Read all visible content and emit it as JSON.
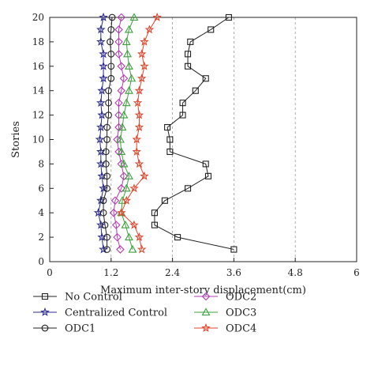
{
  "chart_data": {
    "type": "line",
    "title": "",
    "xlabel": "Maximum inter-story displacement(cm)",
    "ylabel": "Stories",
    "xlim": [
      0,
      6
    ],
    "ylim": [
      0,
      20
    ],
    "x_ticks": [
      "0",
      "1.2",
      "2.4",
      "3.6",
      "4.8",
      "6"
    ],
    "y_ticks": [
      "0",
      "2",
      "4",
      "6",
      "8",
      "10",
      "12",
      "14",
      "16",
      "18",
      "20"
    ],
    "grid": "vertical dashed at x ticks",
    "legend_position": "below plot, two columns",
    "stories": [
      1,
      2,
      3,
      4,
      5,
      6,
      7,
      8,
      9,
      10,
      11,
      12,
      13,
      14,
      15,
      16,
      17,
      18,
      19,
      20
    ],
    "series": [
      {
        "name": "No Control",
        "color": "#222222",
        "marker": "square",
        "x": [
          3.6,
          2.5,
          2.05,
          2.05,
          2.25,
          2.7,
          3.1,
          3.05,
          2.35,
          2.35,
          2.3,
          2.6,
          2.6,
          2.85,
          3.05,
          2.7,
          2.7,
          2.75,
          3.15,
          3.5
        ]
      },
      {
        "name": "Centralized Control",
        "color": "#2b2b8f",
        "marker": "star",
        "x": [
          1.05,
          1.02,
          1.0,
          0.95,
          1.0,
          1.05,
          1.02,
          1.0,
          1.0,
          0.98,
          1.0,
          1.02,
          1.0,
          1.02,
          1.05,
          1.05,
          1.05,
          1.0,
          1.0,
          1.05
        ]
      },
      {
        "name": "ODC1",
        "color": "#222222",
        "marker": "circle",
        "x": [
          1.12,
          1.12,
          1.08,
          1.05,
          1.05,
          1.12,
          1.12,
          1.1,
          1.1,
          1.12,
          1.12,
          1.15,
          1.15,
          1.15,
          1.2,
          1.2,
          1.2,
          1.18,
          1.2,
          1.22
        ]
      },
      {
        "name": "ODC2",
        "color": "#b43cb4",
        "marker": "diamond",
        "x": [
          1.38,
          1.32,
          1.3,
          1.25,
          1.28,
          1.4,
          1.45,
          1.4,
          1.35,
          1.32,
          1.35,
          1.35,
          1.35,
          1.4,
          1.45,
          1.4,
          1.35,
          1.35,
          1.35,
          1.4
        ]
      },
      {
        "name": "ODC3",
        "color": "#3ca03c",
        "marker": "triangle",
        "x": [
          1.62,
          1.55,
          1.48,
          1.4,
          1.42,
          1.5,
          1.55,
          1.45,
          1.4,
          1.38,
          1.42,
          1.45,
          1.5,
          1.55,
          1.6,
          1.55,
          1.52,
          1.5,
          1.55,
          1.65
        ]
      },
      {
        "name": "ODC4",
        "color": "#e0442a",
        "marker": "star",
        "x": [
          1.8,
          1.75,
          1.65,
          1.4,
          1.5,
          1.65,
          1.85,
          1.75,
          1.7,
          1.7,
          1.75,
          1.75,
          1.72,
          1.75,
          1.8,
          1.85,
          1.8,
          1.85,
          1.95,
          2.1
        ]
      }
    ]
  }
}
